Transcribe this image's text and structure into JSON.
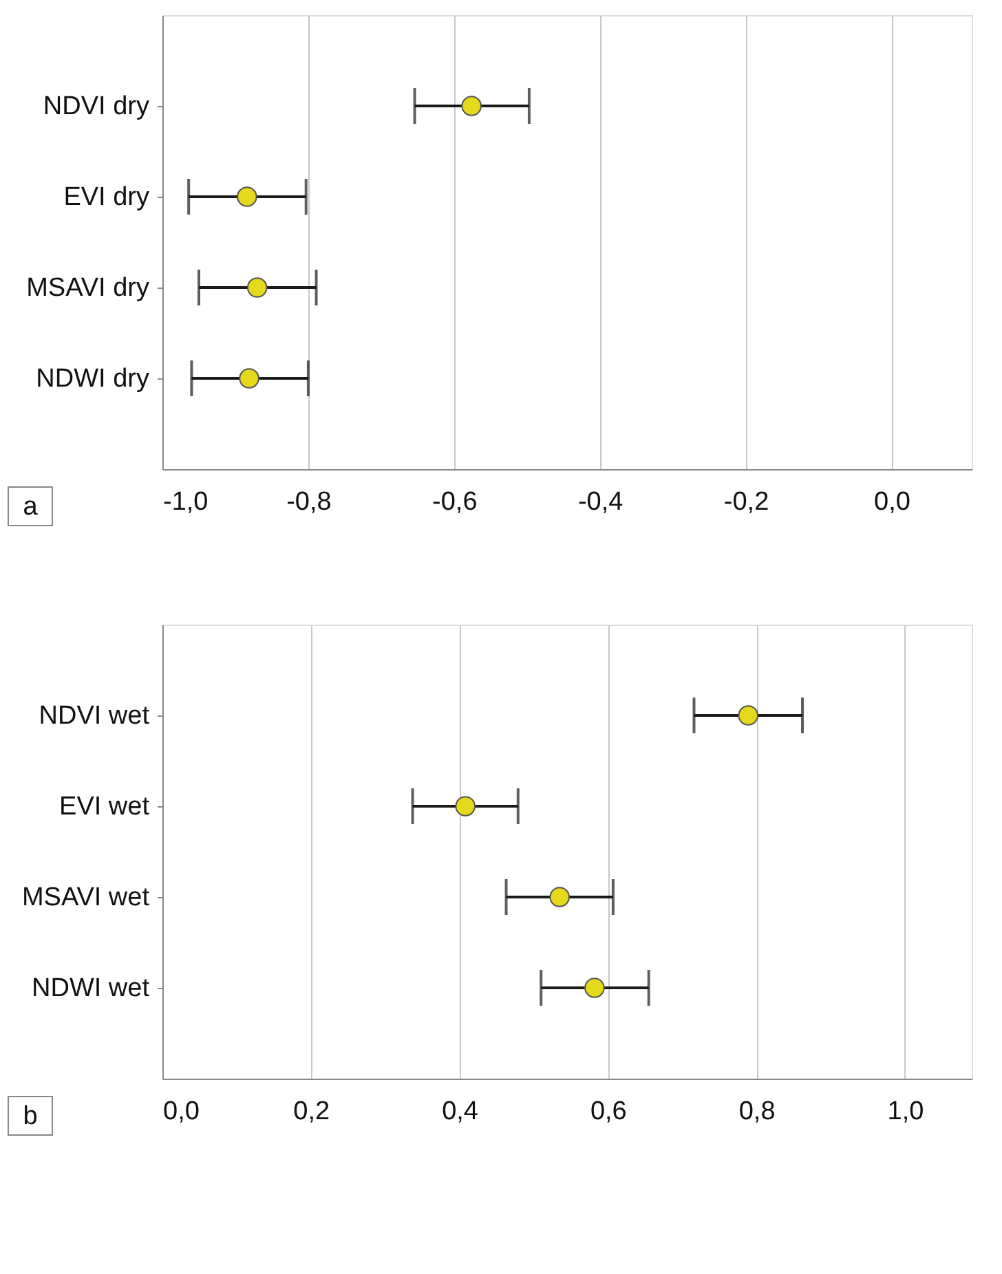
{
  "chart_data": [
    {
      "type": "scatter",
      "orientation": "horizontal",
      "categories": [
        "NDVI dry",
        "EVI dry",
        "MSAVI dry",
        "NDWI dry"
      ],
      "series": [
        {
          "color": "#e6d81a",
          "values": [
            -0.576,
            -0.884,
            -0.87,
            -0.881
          ],
          "errors": [
            [
              -0.654,
              -0.497
            ],
            [
              -0.964,
              -0.803
            ],
            [
              -0.95,
              -0.789
            ],
            [
              -0.96,
              -0.8
            ]
          ]
        }
      ],
      "xlim": [
        -1.0,
        0.11
      ],
      "xticks": [
        {
          "value": -1.0,
          "label": "-1,0"
        },
        {
          "value": -0.8,
          "label": "-0,8"
        },
        {
          "value": -0.6,
          "label": "-0,6"
        },
        {
          "value": -0.4,
          "label": "-0,4"
        },
        {
          "value": -0.2,
          "label": "-0,2"
        },
        {
          "value": 0.0,
          "label": "0,0"
        }
      ],
      "grid": "x",
      "marker": "circle",
      "annotations": [
        "a"
      ]
    },
    {
      "type": "scatter",
      "orientation": "horizontal",
      "categories": [
        "NDVI wet",
        "EVI wet",
        "MSAVI wet",
        "NDWI wet"
      ],
      "series": [
        {
          "color": "#e6d81a",
          "values": [
            0.789,
            0.408,
            0.535,
            0.582
          ],
          "errors": [
            [
              0.716,
              0.862
            ],
            [
              0.337,
              0.479
            ],
            [
              0.463,
              0.607
            ],
            [
              0.51,
              0.655
            ]
          ]
        }
      ],
      "xlim": [
        0.0,
        1.09
      ],
      "xticks": [
        {
          "value": 0.0,
          "label": "0,0"
        },
        {
          "value": 0.2,
          "label": "0,2"
        },
        {
          "value": 0.4,
          "label": "0,4"
        },
        {
          "value": 0.6,
          "label": "0,6"
        },
        {
          "value": 0.8,
          "label": "0,8"
        },
        {
          "value": 1.0,
          "label": "1,0"
        }
      ],
      "grid": "x",
      "marker": "circle",
      "annotations": [
        "b"
      ]
    }
  ]
}
